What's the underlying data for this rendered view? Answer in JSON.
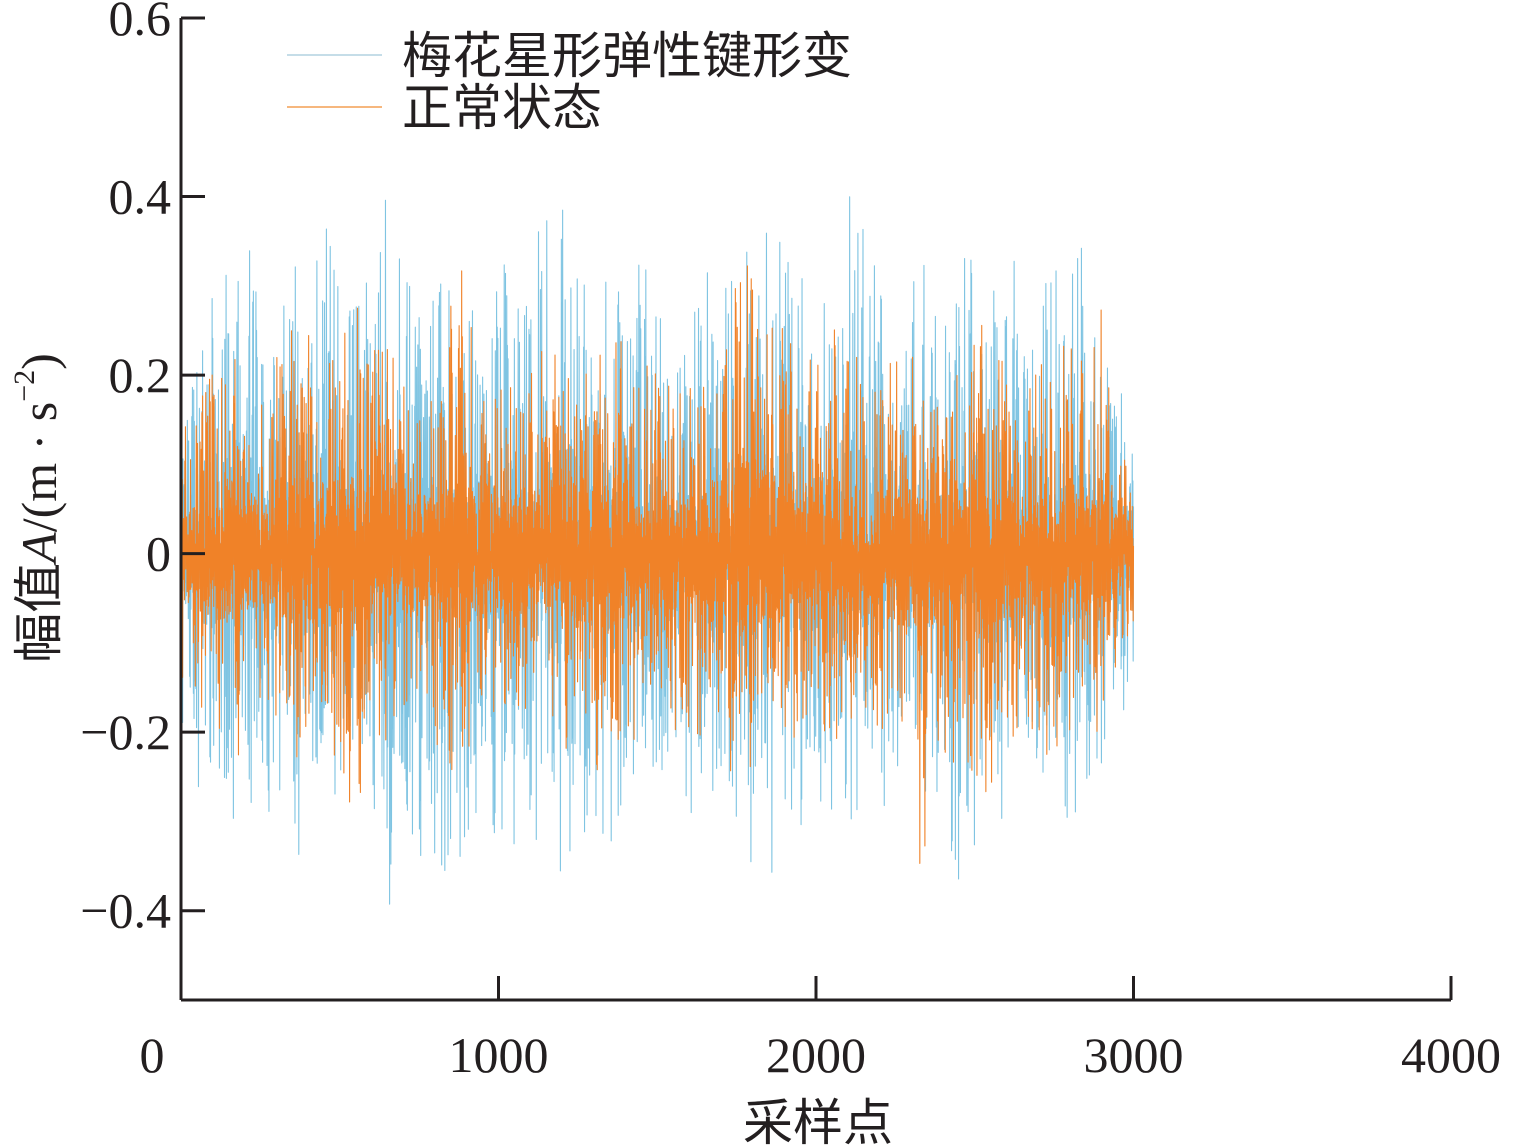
{
  "chart_data": {
    "type": "line",
    "xlabel": "采样点",
    "ylabel_main": "幅值",
    "ylabel_var": "A",
    "ylabel_unit_open": "/(m · s",
    "ylabel_sup": "−2",
    "ylabel_unit_close": ")",
    "xlim": [
      0,
      4000
    ],
    "ylim": [
      -0.5,
      0.6
    ],
    "xticks": [
      0,
      1000,
      2000,
      3000,
      4000
    ],
    "xtick_labels": [
      "0",
      "1000",
      "2000",
      "3000",
      "4000"
    ],
    "yticks": [
      -0.4,
      -0.2,
      0,
      0.2,
      0.4,
      0.6
    ],
    "ytick_labels": [
      "−0.4",
      "−0.2",
      "0",
      "0.2",
      "0.4",
      "0.6"
    ],
    "grid": false,
    "legend_position": "top-left",
    "n_samples": 3000,
    "series": [
      {
        "name": "梅花星形弹性键形变",
        "color": "#7fc4e2",
        "legend_color": "#c5dde8",
        "anchors": [
          0,
          30,
          70,
          130,
          180,
          250,
          300,
          360,
          420,
          520,
          580,
          650,
          700,
          760,
          850,
          940,
          1000,
          1080,
          1170,
          1250,
          1320,
          1400,
          1450,
          1520,
          1600,
          1700,
          1760,
          1820,
          1850,
          1900,
          2000,
          2060,
          2100,
          2150,
          2250,
          2300,
          2360,
          2450,
          2500,
          2600,
          2700,
          2750,
          2800,
          2850,
          2900,
          2950,
          3000
        ],
        "max": [
          0.2,
          0.23,
          0.3,
          0.38,
          0.42,
          0.28,
          0.25,
          0.36,
          0.43,
          0.28,
          0.3,
          0.41,
          0.34,
          0.28,
          0.32,
          0.26,
          0.33,
          0.3,
          0.41,
          0.33,
          0.28,
          0.4,
          0.37,
          0.26,
          0.28,
          0.35,
          0.31,
          0.42,
          0.38,
          0.35,
          0.27,
          0.3,
          0.42,
          0.36,
          0.28,
          0.3,
          0.34,
          0.3,
          0.38,
          0.35,
          0.26,
          0.36,
          0.3,
          0.38,
          0.32,
          0.2,
          0.14
        ],
        "min": [
          -0.2,
          -0.24,
          -0.28,
          -0.34,
          -0.32,
          -0.26,
          -0.3,
          -0.34,
          -0.33,
          -0.26,
          -0.3,
          -0.4,
          -0.3,
          -0.36,
          -0.37,
          -0.3,
          -0.33,
          -0.32,
          -0.4,
          -0.3,
          -0.33,
          -0.31,
          -0.28,
          -0.24,
          -0.3,
          -0.27,
          -0.33,
          -0.36,
          -0.42,
          -0.34,
          -0.3,
          -0.33,
          -0.36,
          -0.3,
          -0.26,
          -0.3,
          -0.28,
          -0.36,
          -0.35,
          -0.3,
          -0.28,
          -0.3,
          -0.33,
          -0.26,
          -0.24,
          -0.2,
          -0.13
        ]
      },
      {
        "name": "正常状态",
        "color": "#f08228",
        "legend_color": "#f6b77e",
        "anchors": [
          0,
          60,
          130,
          180,
          260,
          320,
          380,
          450,
          560,
          620,
          700,
          800,
          880,
          960,
          1050,
          1120,
          1200,
          1300,
          1380,
          1450,
          1520,
          1600,
          1680,
          1760,
          1850,
          1950,
          2050,
          2150,
          2250,
          2330,
          2400,
          2500,
          2560,
          2650,
          2750,
          2850,
          2900,
          3000
        ],
        "max": [
          0.14,
          0.18,
          0.26,
          0.22,
          0.18,
          0.24,
          0.27,
          0.22,
          0.29,
          0.25,
          0.2,
          0.22,
          0.33,
          0.22,
          0.2,
          0.24,
          0.26,
          0.22,
          0.26,
          0.22,
          0.2,
          0.2,
          0.24,
          0.33,
          0.3,
          0.22,
          0.25,
          0.2,
          0.24,
          0.22,
          0.2,
          0.26,
          0.24,
          0.2,
          0.22,
          0.24,
          0.27,
          0.1
        ],
        "min": [
          -0.14,
          -0.18,
          -0.2,
          -0.24,
          -0.16,
          -0.2,
          -0.26,
          -0.22,
          -0.29,
          -0.22,
          -0.18,
          -0.22,
          -0.27,
          -0.2,
          -0.2,
          -0.18,
          -0.22,
          -0.24,
          -0.26,
          -0.2,
          -0.18,
          -0.2,
          -0.22,
          -0.26,
          -0.22,
          -0.2,
          -0.22,
          -0.18,
          -0.22,
          -0.35,
          -0.22,
          -0.27,
          -0.26,
          -0.2,
          -0.22,
          -0.2,
          -0.22,
          -0.08
        ]
      }
    ]
  }
}
